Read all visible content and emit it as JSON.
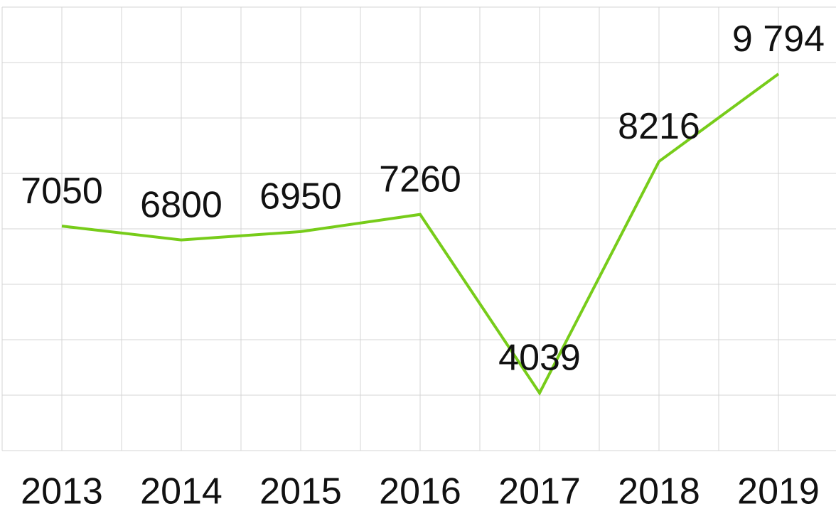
{
  "chart_data": {
    "type": "line",
    "categories": [
      "2013",
      "2014",
      "2015",
      "2016",
      "2017",
      "2018",
      "2019"
    ],
    "values": [
      7050,
      6800,
      6950,
      7260,
      4039,
      8216,
      9794
    ],
    "value_labels": [
      "7050",
      "6800",
      "6950",
      "7260",
      "4039",
      "8216",
      "9 794"
    ],
    "color": "#77cc1a",
    "ylim": [
      3000,
      11000
    ],
    "yticks": [
      3000,
      4000,
      5000,
      6000,
      7000,
      8000,
      9000,
      10000,
      11000
    ],
    "grid": true
  }
}
